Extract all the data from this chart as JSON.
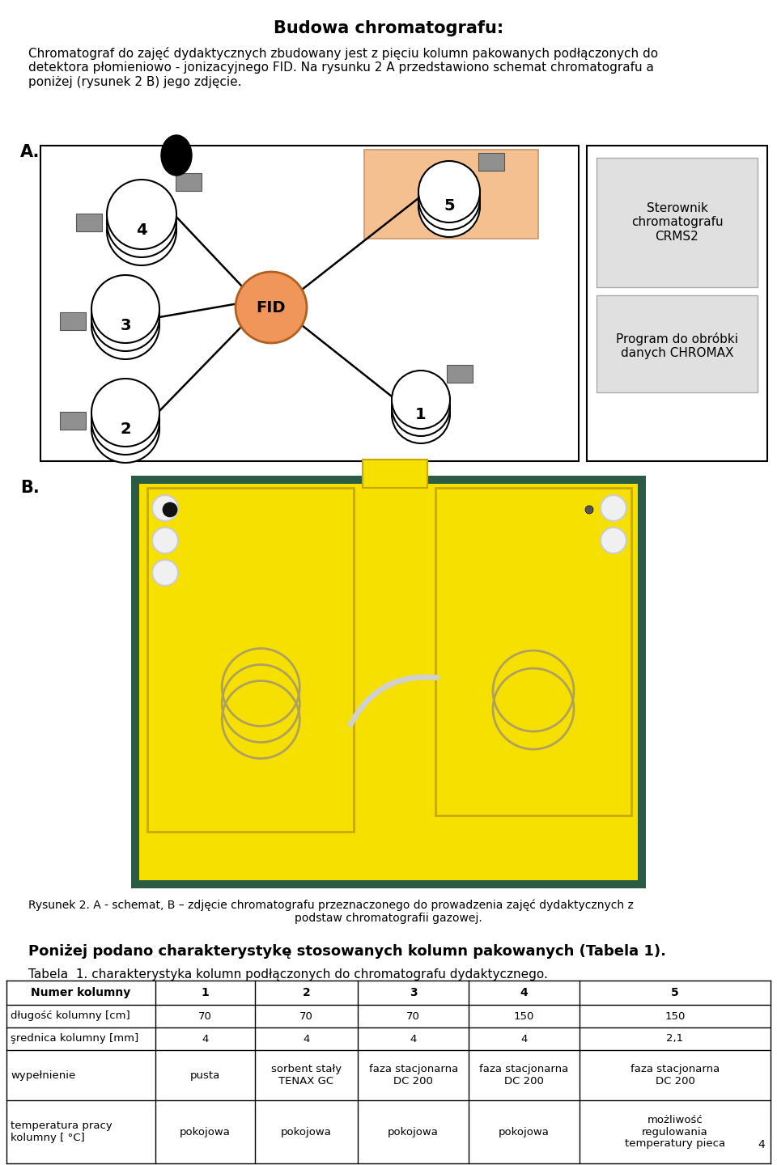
{
  "title": "Budowa chromatografu:",
  "title_fontsize": 15,
  "body_text": "Chromatograf do zajęć dydaktycznych zbudowany jest z pięciu kolumn pakowanych podłączonych do\ndetektora płomieniowo - jonizacyjnego FID. Na rysunku 2 A przedstawiono schemat chromatografu a\nponiżej (rysunek 2 B) jego zdjęcie.",
  "body_fontsize": 11,
  "label_A": "A.",
  "label_B": "B.",
  "label_fontsize": 15,
  "fig_caption_line1": "Rysunek 2. A - schemat, B – zdjęcie chromatografu przeznaczonego do prowadzenia zajęć dydaktycznych z",
  "fig_caption_line2": "podstaw chromatografii gazowej.",
  "caption_fontsize": 10,
  "below_text": "Poniżej podano charakterystykę stosowanych kolumn pakowanych (Tabela 1).",
  "below_fontsize": 13,
  "table_caption": "Tabela  1. charakterystyka kolumn podłączonych do chromatografu dydaktycznego.",
  "table_caption_fontsize": 11,
  "box_text1": "Sterownik\nchromatografu\nCRMS2",
  "box_text2_line1": "Program do obróbki",
  "box_text2_line2": "danych CHROMAX",
  "fid_color": "#F0965A",
  "column5_bg": "#F4C090",
  "table_headers": [
    "Numer kolumny",
    "1",
    "2",
    "3",
    "4",
    "5"
  ],
  "table_row1_label": "długość kolumny [cm]",
  "table_row1_vals": [
    "70",
    "70",
    "70",
    "150",
    "150"
  ],
  "table_row2_label": "şrednica kolumny [mm]",
  "table_row2_vals": [
    "4",
    "4",
    "4",
    "4",
    "2,1"
  ],
  "table_row3_label": "wypełnienie",
  "table_row3_vals": [
    "pusta",
    "sorbent stały\nTENAX GC",
    "faza stacjonarna\nDC 200",
    "faza stacjonarna\nDC 200",
    "faza stacjonarna\nDC 200"
  ],
  "table_row4_label": "temperatura pracy\nkolumny [ °C]",
  "table_row4_vals": [
    "pokojowa",
    "pokojowa",
    "pokojowa",
    "pokojowa",
    "możliwość\nregulowania\ntemperatury pieca"
  ],
  "page_number": "4",
  "bg_color": "#ffffff"
}
